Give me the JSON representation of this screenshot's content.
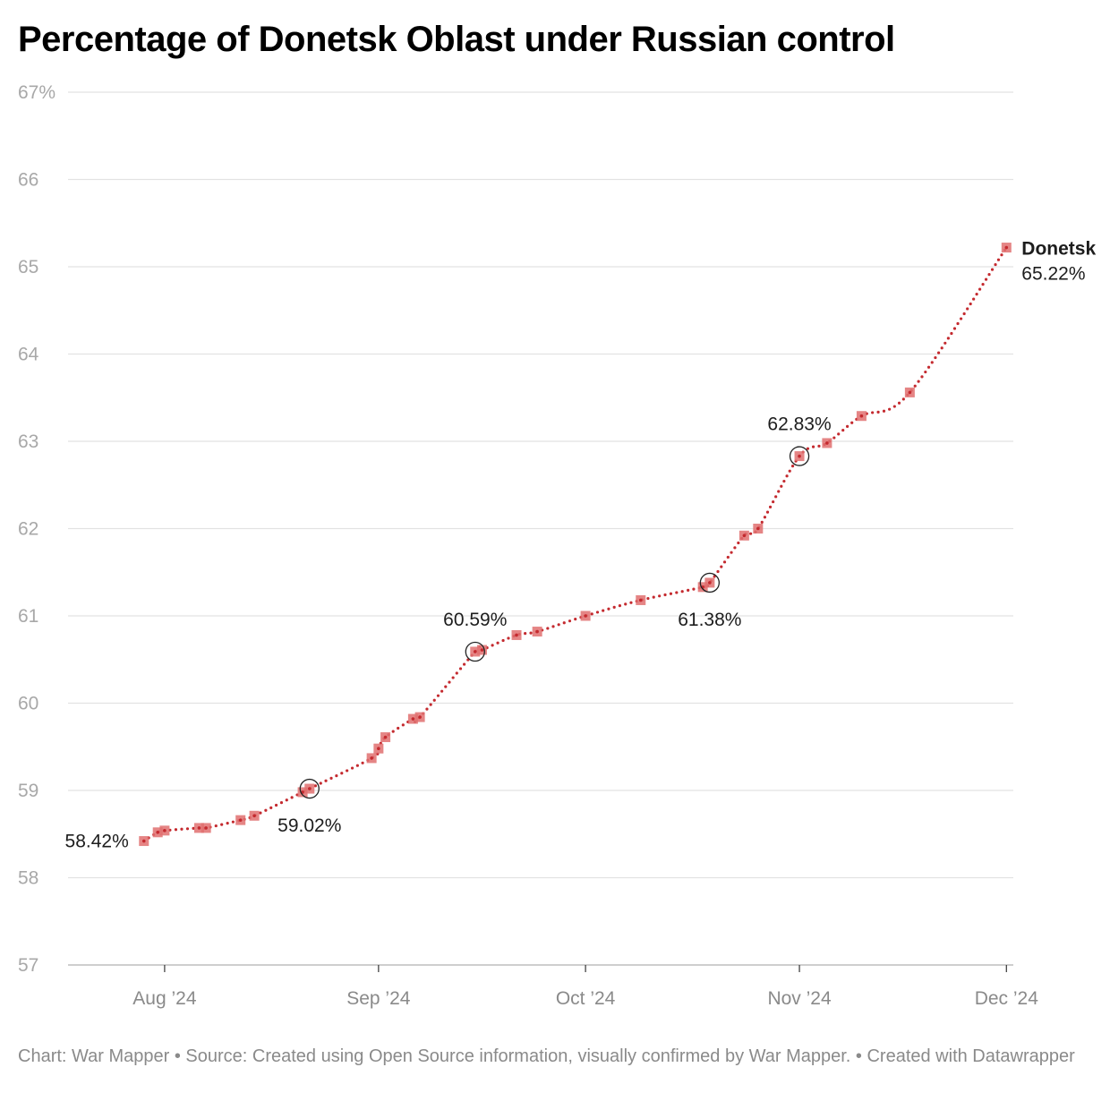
{
  "chart_data": {
    "type": "line",
    "title": "Percentage of Donetsk Oblast under Russian control",
    "footer": "Chart: War Mapper • Source: Created using Open Source information, visually confirmed by War Mapper. • Created with Datawrapper",
    "x_axis": {
      "type": "date",
      "range": [
        "2024-07-18",
        "2024-12-02"
      ],
      "ticks": [
        {
          "date": "2024-08-01",
          "label": "Aug ’24"
        },
        {
          "date": "2024-09-01",
          "label": "Sep ’24"
        },
        {
          "date": "2024-10-01",
          "label": "Oct ’24"
        },
        {
          "date": "2024-11-01",
          "label": "Nov ’24"
        },
        {
          "date": "2024-12-01",
          "label": "Dec ’24"
        }
      ]
    },
    "y_axis": {
      "ylim": [
        57,
        67
      ],
      "ticks": [
        {
          "value": 57,
          "label": "57"
        },
        {
          "value": 58,
          "label": "58"
        },
        {
          "value": 59,
          "label": "59"
        },
        {
          "value": 60,
          "label": "60"
        },
        {
          "value": 61,
          "label": "61"
        },
        {
          "value": 62,
          "label": "62"
        },
        {
          "value": 63,
          "label": "63"
        },
        {
          "value": 64,
          "label": "64"
        },
        {
          "value": 65,
          "label": "65"
        },
        {
          "value": 66,
          "label": "66"
        },
        {
          "value": 67,
          "label": "67%"
        }
      ]
    },
    "grid": true,
    "colors": {
      "line": "#c42a2f",
      "marker": "#e07070",
      "grid": "#e2e2e2"
    },
    "series": [
      {
        "name": "Donetsk",
        "end_label": "65.22%",
        "points": [
          {
            "x": "2024-07-29",
            "y": 58.42
          },
          {
            "x": "2024-07-31",
            "y": 58.52
          },
          {
            "x": "2024-08-01",
            "y": 58.54
          },
          {
            "x": "2024-08-06",
            "y": 58.57
          },
          {
            "x": "2024-08-07",
            "y": 58.57
          },
          {
            "x": "2024-08-12",
            "y": 58.66
          },
          {
            "x": "2024-08-14",
            "y": 58.71
          },
          {
            "x": "2024-08-21",
            "y": 58.98
          },
          {
            "x": "2024-08-22",
            "y": 59.02
          },
          {
            "x": "2024-08-31",
            "y": 59.37
          },
          {
            "x": "2024-09-01",
            "y": 59.48
          },
          {
            "x": "2024-09-02",
            "y": 59.61
          },
          {
            "x": "2024-09-06",
            "y": 59.82
          },
          {
            "x": "2024-09-07",
            "y": 59.84
          },
          {
            "x": "2024-09-15",
            "y": 60.59
          },
          {
            "x": "2024-09-16",
            "y": 60.61
          },
          {
            "x": "2024-09-21",
            "y": 60.78
          },
          {
            "x": "2024-09-24",
            "y": 60.82
          },
          {
            "x": "2024-10-01",
            "y": 61.0
          },
          {
            "x": "2024-10-09",
            "y": 61.18
          },
          {
            "x": "2024-10-18",
            "y": 61.33
          },
          {
            "x": "2024-10-19",
            "y": 61.38
          },
          {
            "x": "2024-10-24",
            "y": 61.92
          },
          {
            "x": "2024-10-26",
            "y": 62.0
          },
          {
            "x": "2024-11-01",
            "y": 62.83
          },
          {
            "x": "2024-11-05",
            "y": 62.98
          },
          {
            "x": "2024-11-10",
            "y": 63.29
          },
          {
            "x": "2024-11-17",
            "y": 63.56
          },
          {
            "x": "2024-12-01",
            "y": 65.22
          }
        ]
      }
    ],
    "annotations": [
      {
        "x": "2024-07-29",
        "y": 58.42,
        "label": "58.42%",
        "circled": false,
        "placement": "left"
      },
      {
        "x": "2024-08-22",
        "y": 59.02,
        "label": "59.02%",
        "circled": true,
        "placement": "below"
      },
      {
        "x": "2024-09-15",
        "y": 60.59,
        "label": "60.59%",
        "circled": true,
        "placement": "above"
      },
      {
        "x": "2024-10-19",
        "y": 61.38,
        "label": "61.38%",
        "circled": true,
        "placement": "below"
      },
      {
        "x": "2024-11-01",
        "y": 62.83,
        "label": "62.83%",
        "circled": true,
        "placement": "above"
      }
    ]
  }
}
